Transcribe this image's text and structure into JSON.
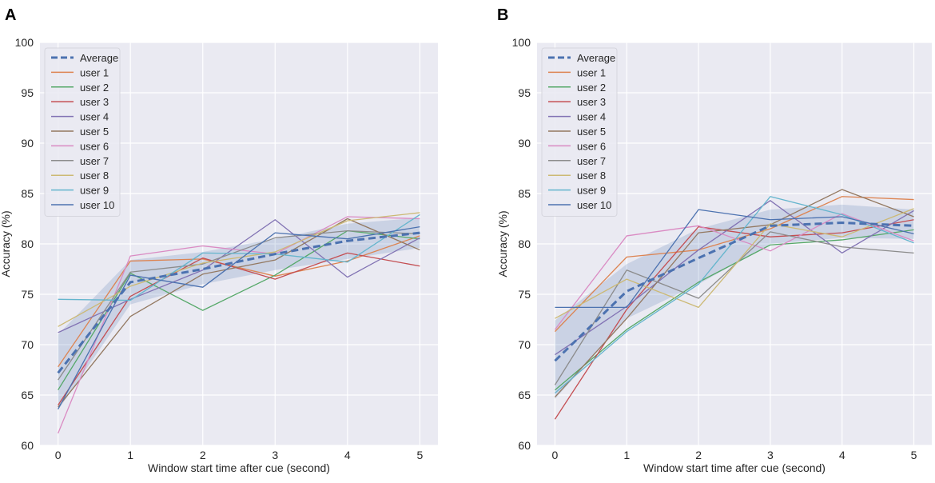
{
  "chart_data": [
    {
      "type": "line",
      "panel_label": "A",
      "title": "",
      "xlabel": "Window start time after cue (second)",
      "ylabel": "Accuracy (%)",
      "x": [
        0,
        1,
        2,
        3,
        4,
        5
      ],
      "xticks": [
        "0",
        "1",
        "2",
        "3",
        "4",
        "5"
      ],
      "yticks": [
        "60",
        "65",
        "70",
        "75",
        "80",
        "85",
        "90",
        "95",
        "100"
      ],
      "xlim": [
        -0.25,
        5.25
      ],
      "ylim": [
        60,
        100
      ],
      "grid": true,
      "legend": "top-left",
      "average": {
        "name": "Average",
        "color": "#4c72b0",
        "values": [
          67.2,
          76.2,
          77.5,
          79.0,
          80.3,
          81.1
        ]
      },
      "band": {
        "lower": [
          63.5,
          74.0,
          76.0,
          77.4,
          78.5,
          79.6
        ],
        "upper": [
          71.0,
          78.4,
          79.2,
          80.5,
          82.0,
          82.6
        ],
        "color": "#4c72b0"
      },
      "series": [
        {
          "name": "user 1",
          "color": "#dd8452",
          "values": [
            67.8,
            78.3,
            78.5,
            76.8,
            78.3,
            80.8
          ]
        },
        {
          "name": "user 2",
          "color": "#55a868",
          "values": [
            65.5,
            77.1,
            73.4,
            76.9,
            81.3,
            80.5
          ]
        },
        {
          "name": "user 3",
          "color": "#c44e52",
          "values": [
            64.0,
            74.8,
            78.6,
            76.5,
            79.1,
            77.8
          ]
        },
        {
          "name": "user 4",
          "color": "#8172b3",
          "values": [
            71.2,
            74.5,
            77.4,
            82.4,
            76.7,
            80.6
          ]
        },
        {
          "name": "user 5",
          "color": "#937860",
          "values": [
            63.8,
            72.8,
            77.0,
            78.4,
            82.5,
            79.4
          ]
        },
        {
          "name": "user 6",
          "color": "#da8bc3",
          "values": [
            61.2,
            78.8,
            79.8,
            79.0,
            82.7,
            82.5
          ]
        },
        {
          "name": "user 7",
          "color": "#8c8c8c",
          "values": [
            66.5,
            77.2,
            78.0,
            80.6,
            81.3,
            81.0
          ]
        },
        {
          "name": "user 8",
          "color": "#ccb974",
          "values": [
            71.8,
            75.8,
            78.1,
            79.2,
            82.3,
            83.1
          ]
        },
        {
          "name": "user 9",
          "color": "#64b5cd",
          "values": [
            74.5,
            74.4,
            79.1,
            79.0,
            78.2,
            82.9
          ]
        },
        {
          "name": "user 10",
          "color": "#4c72b0",
          "values": [
            63.6,
            76.9,
            75.7,
            81.1,
            80.5,
            81.7
          ]
        }
      ]
    },
    {
      "type": "line",
      "panel_label": "B",
      "title": "",
      "xlabel": "Window start time after cue (second)",
      "ylabel": "Accuracy (%)",
      "x": [
        0,
        1,
        2,
        3,
        4,
        5
      ],
      "xticks": [
        "0",
        "1",
        "2",
        "3",
        "4",
        "5"
      ],
      "yticks": [
        "60",
        "65",
        "70",
        "75",
        "80",
        "85",
        "90",
        "95",
        "100"
      ],
      "xlim": [
        -0.25,
        5.25
      ],
      "ylim": [
        60,
        100
      ],
      "grid": true,
      "legend": "top-left",
      "average": {
        "name": "Average",
        "color": "#4c72b0",
        "values": [
          68.4,
          75.3,
          78.6,
          81.8,
          82.1,
          81.8
        ]
      },
      "band": {
        "lower": [
          64.6,
          72.6,
          76.0,
          80.0,
          80.6,
          80.5
        ],
        "upper": [
          72.4,
          78.0,
          81.5,
          83.4,
          83.9,
          83.4
        ],
        "color": "#4c72b0"
      },
      "series": [
        {
          "name": "user 1",
          "color": "#dd8452",
          "values": [
            71.3,
            78.7,
            79.4,
            81.5,
            84.7,
            84.4
          ]
        },
        {
          "name": "user 2",
          "color": "#55a868",
          "values": [
            65.5,
            71.5,
            76.2,
            79.9,
            80.4,
            81.4
          ]
        },
        {
          "name": "user 3",
          "color": "#c44e52",
          "values": [
            62.6,
            73.5,
            81.7,
            80.7,
            81.1,
            82.4
          ]
        },
        {
          "name": "user 4",
          "color": "#8172b3",
          "values": [
            69.0,
            73.8,
            79.4,
            84.3,
            79.1,
            83.3
          ]
        },
        {
          "name": "user 5",
          "color": "#937860",
          "values": [
            64.8,
            72.6,
            81.1,
            81.9,
            85.4,
            82.7
          ]
        },
        {
          "name": "user 6",
          "color": "#da8bc3",
          "values": [
            71.5,
            80.8,
            81.8,
            79.3,
            83.0,
            80.3
          ]
        },
        {
          "name": "user 7",
          "color": "#8c8c8c",
          "values": [
            66.0,
            77.4,
            74.6,
            81.2,
            79.7,
            79.1
          ]
        },
        {
          "name": "user 8",
          "color": "#ccb974",
          "values": [
            72.6,
            76.5,
            73.7,
            82.0,
            80.7,
            83.5
          ]
        },
        {
          "name": "user 9",
          "color": "#64b5cd",
          "values": [
            65.2,
            71.3,
            76.0,
            84.7,
            82.9,
            80.1
          ]
        },
        {
          "name": "user 10",
          "color": "#4c72b0",
          "values": [
            73.7,
            73.7,
            83.4,
            82.4,
            82.7,
            81.0
          ]
        }
      ]
    }
  ]
}
